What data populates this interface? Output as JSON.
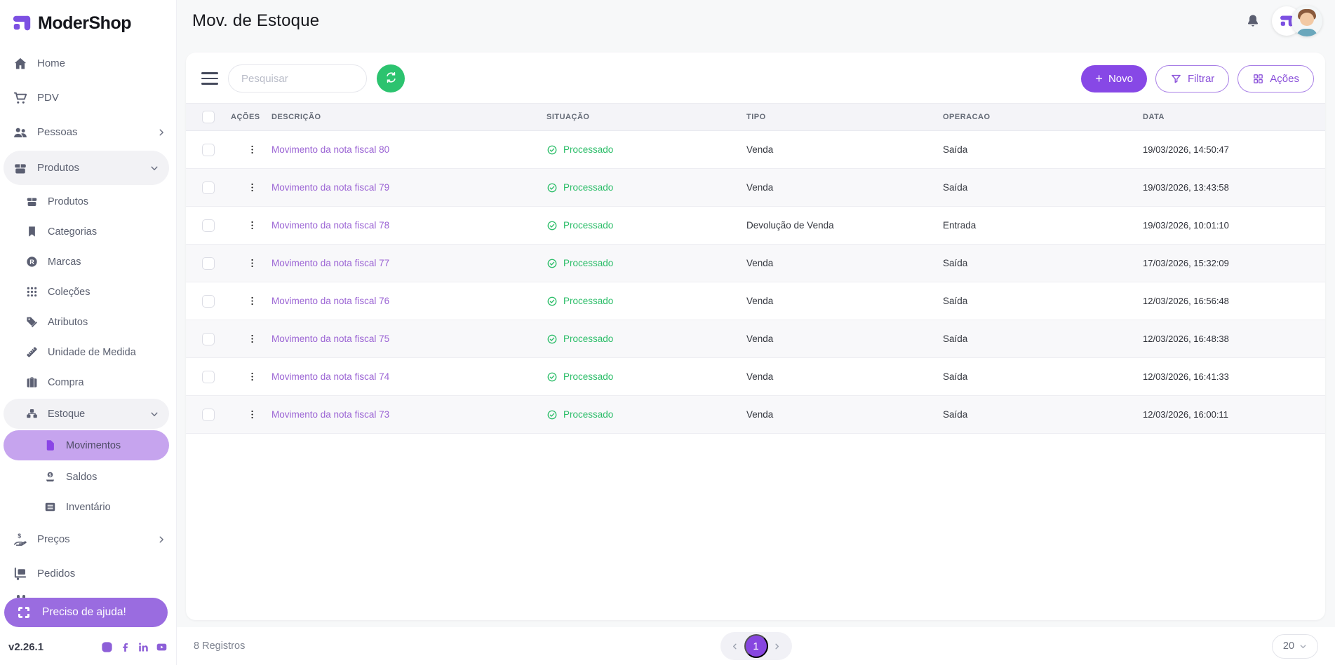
{
  "app": {
    "brand": "ModerShop",
    "version": "v2.26.1"
  },
  "topbar": {
    "title": "Mov. de Estoque"
  },
  "sidebar": {
    "items": [
      {
        "label": "Home",
        "icon": "home-icon",
        "level": 0
      },
      {
        "label": "PDV",
        "icon": "cart-icon",
        "level": 0
      },
      {
        "label": "Pessoas",
        "icon": "people-icon",
        "level": 0,
        "chevron": "right"
      },
      {
        "label": "Produtos",
        "icon": "box-icon",
        "level": 0,
        "chevron": "down",
        "state": "expanded"
      },
      {
        "label": "Produtos",
        "icon": "box-icon",
        "level": 1
      },
      {
        "label": "Categorias",
        "icon": "bookmark-icon",
        "level": 1
      },
      {
        "label": "Marcas",
        "icon": "registered-icon",
        "level": 1
      },
      {
        "label": "Coleções",
        "icon": "grid-dots-icon",
        "level": 1
      },
      {
        "label": "Atributos",
        "icon": "tags-icon",
        "level": 1
      },
      {
        "label": "Unidade de Medida",
        "icon": "ruler-icon",
        "level": 1
      },
      {
        "label": "Compra",
        "icon": "briefcase-icon",
        "level": 1
      },
      {
        "label": "Estoque",
        "icon": "boxes-icon",
        "level": 1,
        "chevron": "down",
        "state": "expanded"
      },
      {
        "label": "Movimentos",
        "icon": "file-icon",
        "level": 2,
        "state": "selected"
      },
      {
        "label": "Saldos",
        "icon": "coin-icon",
        "level": 2
      },
      {
        "label": "Inventário",
        "icon": "list-icon",
        "level": 2
      },
      {
        "label": "Preços",
        "icon": "hand-dollar-icon",
        "level": 0,
        "chevron": "right"
      },
      {
        "label": "Pedidos",
        "icon": "delivery-icon",
        "level": 0
      }
    ],
    "help_label": "Preciso de ajuda!",
    "socials": [
      "instagram-icon",
      "facebook-icon",
      "linkedin-icon",
      "youtube-icon"
    ]
  },
  "toolbar": {
    "search_placeholder": "Pesquisar",
    "novo_label": "Novo",
    "filtrar_label": "Filtrar",
    "acoes_label": "Ações"
  },
  "table": {
    "columns": [
      "AÇÕES",
      "DESCRIÇÃO",
      "SITUAÇÃO",
      "TIPO",
      "OPERACAO",
      "DATA"
    ],
    "rows": [
      {
        "descricao": "Movimento da nota fiscal 80",
        "situacao": "Processado",
        "tipo": "Venda",
        "operacao": "Saída",
        "data": "19/03/2026, 14:50:47"
      },
      {
        "descricao": "Movimento da nota fiscal 79",
        "situacao": "Processado",
        "tipo": "Venda",
        "operacao": "Saída",
        "data": "19/03/2026, 13:43:58"
      },
      {
        "descricao": "Movimento da nota fiscal 78",
        "situacao": "Processado",
        "tipo": "Devolução de Venda",
        "operacao": "Entrada",
        "data": "19/03/2026, 10:01:10"
      },
      {
        "descricao": "Movimento da nota fiscal 77",
        "situacao": "Processado",
        "tipo": "Venda",
        "operacao": "Saída",
        "data": "17/03/2026, 15:32:09"
      },
      {
        "descricao": "Movimento da nota fiscal 76",
        "situacao": "Processado",
        "tipo": "Venda",
        "operacao": "Saída",
        "data": "12/03/2026, 16:56:48"
      },
      {
        "descricao": "Movimento da nota fiscal 75",
        "situacao": "Processado",
        "tipo": "Venda",
        "operacao": "Saída",
        "data": "12/03/2026, 16:48:38"
      },
      {
        "descricao": "Movimento da nota fiscal 74",
        "situacao": "Processado",
        "tipo": "Venda",
        "operacao": "Saída",
        "data": "12/03/2026, 16:41:33"
      },
      {
        "descricao": "Movimento da nota fiscal 73",
        "situacao": "Processado",
        "tipo": "Venda",
        "operacao": "Saída",
        "data": "12/03/2026, 16:00:11"
      }
    ]
  },
  "footer": {
    "records": "8 Registros",
    "current_page": "1",
    "page_size": "20"
  },
  "colors": {
    "primary": "#8748e6",
    "selected_bg": "#c6a4ee",
    "green": "#2cc36f",
    "link": "#9b64d4"
  }
}
